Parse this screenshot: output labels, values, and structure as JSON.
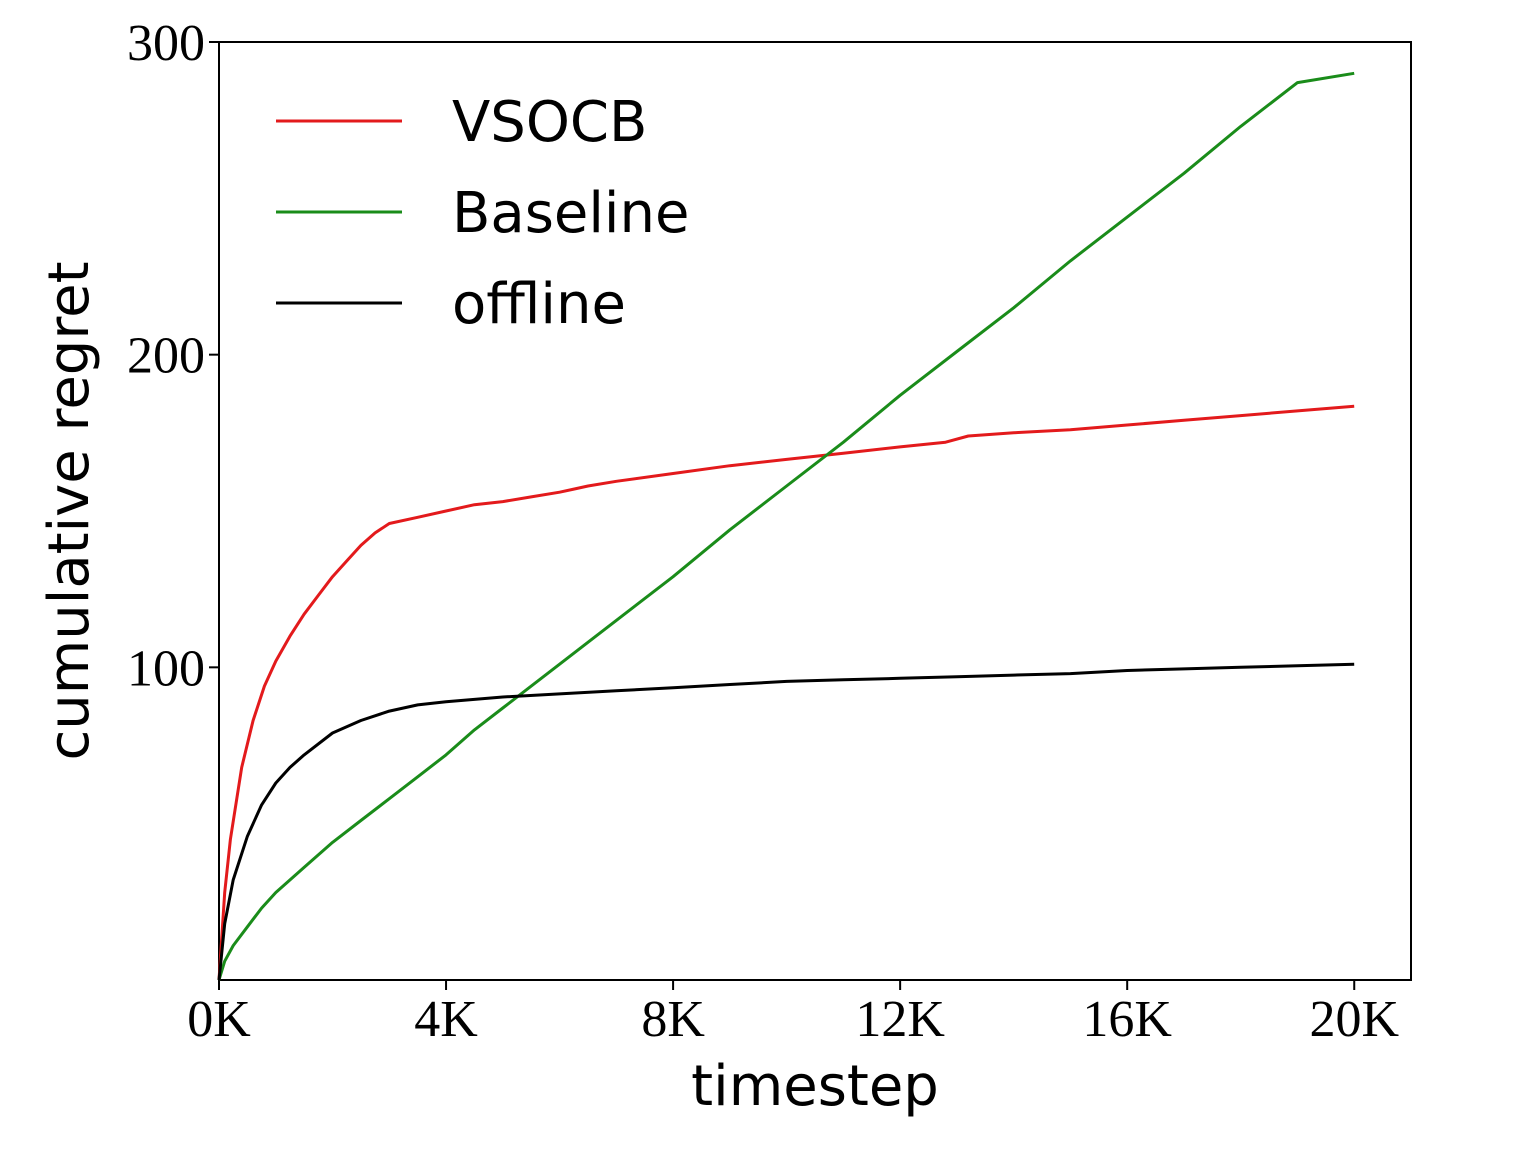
{
  "chart_data": {
    "type": "line",
    "title": "",
    "xlabel": "timestep",
    "ylabel": "cumulative regret",
    "xlim": [
      0,
      21000
    ],
    "ylim": [
      0,
      300
    ],
    "x_ticks": [
      0,
      4000,
      8000,
      12000,
      16000,
      20000
    ],
    "x_tick_labels": [
      "0K",
      "4K",
      "8K",
      "12K",
      "16K",
      "20K"
    ],
    "y_ticks": [
      100,
      200,
      300
    ],
    "y_tick_labels": [
      "100",
      "200",
      "300"
    ],
    "grid": false,
    "legend_position": "top-left",
    "series": [
      {
        "name": "VSOCB",
        "color": "#e31a1c",
        "points": [
          [
            0,
            0
          ],
          [
            100,
            28
          ],
          [
            200,
            45
          ],
          [
            400,
            68
          ],
          [
            600,
            83
          ],
          [
            800,
            94
          ],
          [
            1000,
            102
          ],
          [
            1250,
            110
          ],
          [
            1500,
            117
          ],
          [
            1750,
            123
          ],
          [
            2000,
            129
          ],
          [
            2250,
            134
          ],
          [
            2500,
            139
          ],
          [
            2750,
            143
          ],
          [
            3000,
            146
          ],
          [
            3500,
            148
          ],
          [
            4000,
            150
          ],
          [
            4500,
            152
          ],
          [
            5000,
            153
          ],
          [
            5500,
            154.5
          ],
          [
            6000,
            156
          ],
          [
            6250,
            157
          ],
          [
            6500,
            158
          ],
          [
            7000,
            159.5
          ],
          [
            8000,
            162
          ],
          [
            9000,
            164.5
          ],
          [
            10000,
            166.5
          ],
          [
            11000,
            168.5
          ],
          [
            12000,
            170.5
          ],
          [
            12800,
            172
          ],
          [
            13200,
            174
          ],
          [
            14000,
            175
          ],
          [
            15000,
            176
          ],
          [
            16000,
            177.5
          ],
          [
            17000,
            179
          ],
          [
            18000,
            180.5
          ],
          [
            19000,
            182
          ],
          [
            20000,
            183.5
          ]
        ]
      },
      {
        "name": "Baseline",
        "color": "#1a8c1a",
        "points": [
          [
            0,
            0
          ],
          [
            100,
            6
          ],
          [
            250,
            11
          ],
          [
            500,
            17
          ],
          [
            750,
            23
          ],
          [
            1000,
            28
          ],
          [
            1500,
            36
          ],
          [
            2000,
            44
          ],
          [
            2500,
            51
          ],
          [
            3000,
            58
          ],
          [
            3500,
            65
          ],
          [
            4000,
            72
          ],
          [
            4500,
            80
          ],
          [
            5000,
            87
          ],
          [
            6000,
            101
          ],
          [
            7000,
            115
          ],
          [
            8000,
            129
          ],
          [
            9000,
            144
          ],
          [
            10000,
            158
          ],
          [
            11000,
            172
          ],
          [
            12000,
            187
          ],
          [
            13000,
            201
          ],
          [
            14000,
            215
          ],
          [
            15000,
            230
          ],
          [
            16000,
            244
          ],
          [
            17000,
            258
          ],
          [
            18000,
            273
          ],
          [
            19000,
            287
          ],
          [
            20000,
            290
          ]
        ]
      },
      {
        "name": "offline",
        "color": "#000000",
        "points": [
          [
            0,
            0
          ],
          [
            100,
            18
          ],
          [
            250,
            32
          ],
          [
            500,
            46
          ],
          [
            750,
            56
          ],
          [
            1000,
            63
          ],
          [
            1250,
            68
          ],
          [
            1500,
            72
          ],
          [
            2000,
            79
          ],
          [
            2500,
            83
          ],
          [
            3000,
            86
          ],
          [
            3500,
            88
          ],
          [
            4000,
            89
          ],
          [
            5000,
            90.5
          ],
          [
            6000,
            91.5
          ],
          [
            7000,
            92.5
          ],
          [
            8000,
            93.5
          ],
          [
            9000,
            94.5
          ],
          [
            10000,
            95.5
          ],
          [
            11000,
            96
          ],
          [
            12000,
            96.5
          ],
          [
            13000,
            97
          ],
          [
            14000,
            97.5
          ],
          [
            15000,
            98
          ],
          [
            16000,
            99
          ],
          [
            17000,
            99.5
          ],
          [
            18000,
            100
          ],
          [
            19000,
            100.5
          ],
          [
            20000,
            101
          ]
        ]
      }
    ]
  }
}
